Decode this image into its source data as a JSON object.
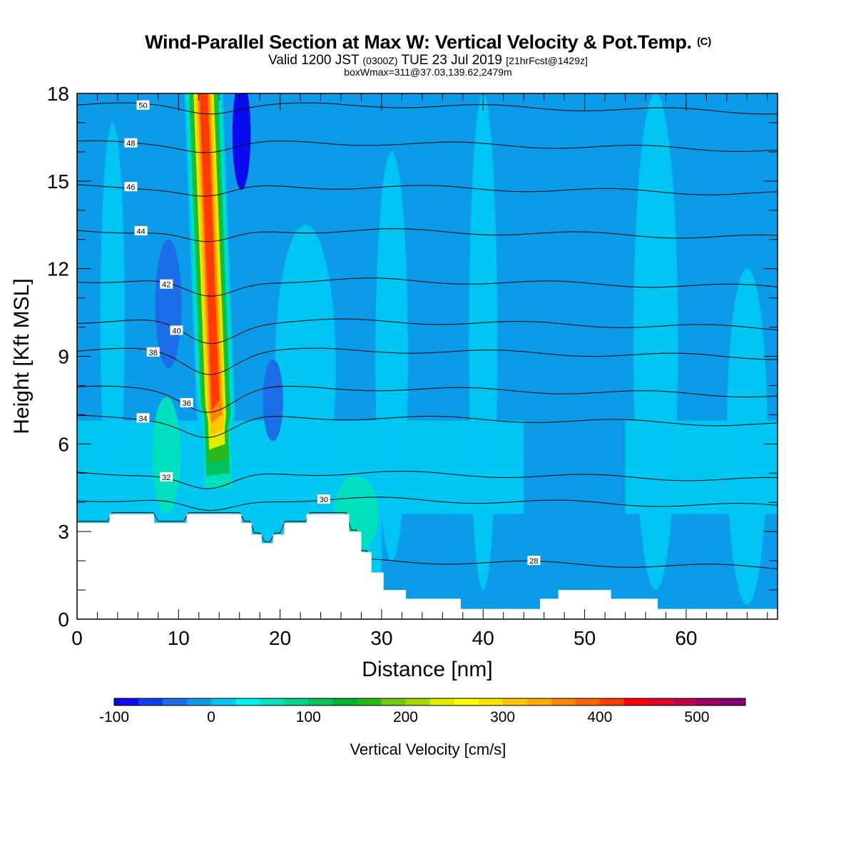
{
  "header": {
    "title": "Wind-Parallel Section at Max W: Vertical Velocity & Pot.Temp.",
    "copyright": "(C)",
    "valid_prefix": "Valid 1200 JST",
    "valid_utc": "(0300Z)",
    "valid_date": "TUE 23 Jul 2019",
    "forecast": "[21hrFcst@1429z]",
    "boxinfo": "boxWmax=311@37.03,139.62,2479m"
  },
  "chart_data": {
    "type": "contour-section",
    "xlabel": "Distance [nm]",
    "ylabel": "Height [Kft MSL]",
    "xlim": [
      0,
      69
    ],
    "ylim": [
      0,
      18
    ],
    "xticks": [
      0,
      10,
      20,
      30,
      40,
      50,
      60
    ],
    "yticks": [
      0,
      3,
      6,
      9,
      12,
      15,
      18
    ],
    "colorbar": {
      "label": "Vertical Velocity [cm/s]",
      "range": [
        -100,
        550
      ],
      "step": 25,
      "tick_values": [
        -100,
        0,
        100,
        200,
        300,
        400,
        500
      ],
      "colors": [
        "#0a0af0",
        "#1040ee",
        "#1c6ee8",
        "#0b9be8",
        "#00c6f2",
        "#00f0f0",
        "#00e0c0",
        "#00d28e",
        "#00c25a",
        "#00b030",
        "#28b818",
        "#6cc810",
        "#a8d800",
        "#e0ec00",
        "#ffff00",
        "#ffe400",
        "#ffc800",
        "#ffaa00",
        "#ff8800",
        "#ff6400",
        "#ff3c00",
        "#ff0000",
        "#e0002a",
        "#c00048",
        "#a0005e",
        "#800070"
      ]
    },
    "terrain_kft": [
      [
        0,
        3.3
      ],
      [
        3.2,
        3.3
      ],
      [
        3.2,
        3.6
      ],
      [
        7.6,
        3.6
      ],
      [
        7.6,
        3.3
      ],
      [
        10.8,
        3.3
      ],
      [
        10.8,
        3.6
      ],
      [
        16.2,
        3.6
      ],
      [
        16.2,
        3.3
      ],
      [
        17.2,
        3.3
      ],
      [
        17.2,
        2.9
      ],
      [
        18.2,
        2.9
      ],
      [
        18.2,
        2.6
      ],
      [
        19.3,
        2.6
      ],
      [
        19.3,
        2.9
      ],
      [
        20.4,
        2.9
      ],
      [
        20.4,
        3.3
      ],
      [
        22.6,
        3.3
      ],
      [
        22.6,
        3.6
      ],
      [
        26.8,
        3.6
      ],
      [
        26.8,
        3.0
      ],
      [
        28.0,
        3.0
      ],
      [
        28.0,
        2.3
      ],
      [
        29.0,
        2.3
      ],
      [
        29.0,
        1.6
      ],
      [
        30.2,
        1.6
      ],
      [
        30.2,
        1.0
      ],
      [
        32.4,
        1.0
      ],
      [
        32.4,
        0.7
      ],
      [
        37.8,
        0.7
      ],
      [
        37.8,
        0.35
      ],
      [
        45.6,
        0.35
      ],
      [
        45.6,
        0.7
      ],
      [
        47.4,
        0.7
      ],
      [
        47.4,
        1.0
      ],
      [
        52.6,
        1.0
      ],
      [
        52.6,
        0.7
      ],
      [
        57.2,
        0.7
      ],
      [
        57.2,
        0.35
      ],
      [
        69,
        0.35
      ]
    ],
    "isentropes": [
      {
        "label": "50",
        "y": 17.6,
        "amp": 0.15,
        "label_x": 6.5
      },
      {
        "label": "48",
        "y": 16.3,
        "amp": 0.18,
        "label_x": 5.3
      },
      {
        "label": "46",
        "y": 14.8,
        "amp": 0.22,
        "label_x": 5.3
      },
      {
        "label": "44",
        "y": 13.3,
        "amp": 0.3,
        "label_x": 6.3
      },
      {
        "label": "42",
        "y": 11.6,
        "amp": 0.4,
        "label_x": 8.8
      },
      {
        "label": "40",
        "y": 10.2,
        "amp": 0.5,
        "label_x": 9.8
      },
      {
        "label": "38",
        "y": 9.2,
        "amp": 0.5,
        "label_x": 7.5
      },
      {
        "label": "36",
        "y": 7.9,
        "amp": 0.5,
        "label_x": 10.8
      },
      {
        "label": "34",
        "y": 6.9,
        "amp": 0.45,
        "label_x": 6.5
      },
      {
        "label": "32",
        "y": 5.0,
        "amp": 0.4,
        "label_x": 8.8
      },
      {
        "label": "30",
        "y": 4.1,
        "amp": 0.3,
        "label_x": 24.3
      },
      {
        "label": "28",
        "y": 2.0,
        "amp": 0.2,
        "label_x": 45.0
      }
    ]
  },
  "colors": {
    "background_field": "#00c8f5",
    "descent": "#0aa0ea",
    "updraft_core": "#ff8800"
  }
}
